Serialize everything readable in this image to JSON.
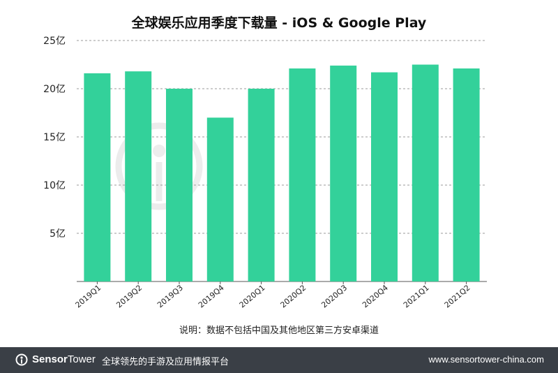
{
  "chart_data": {
    "type": "bar",
    "title": "全球娱乐应用季度下载量 - iOS & Google Play",
    "categories": [
      "2019Q1",
      "2019Q2",
      "2019Q3",
      "2019Q4",
      "2020Q1",
      "2020Q2",
      "2020Q3",
      "2020Q4",
      "2021Q1",
      "2021Q2"
    ],
    "values": [
      21.6,
      21.8,
      20.0,
      17.0,
      20.0,
      22.1,
      22.4,
      21.7,
      22.5,
      22.1
    ],
    "y_ticks": [
      "25亿",
      "20亿",
      "15亿",
      "10亿",
      "5亿"
    ],
    "y_tick_values": [
      25,
      20,
      15,
      10,
      5
    ],
    "ylim": [
      0,
      25
    ],
    "grid": true,
    "bar_color": "#33d19a",
    "grid_color": "#9a9a9a"
  },
  "footnote": "说明：数据不包括中国及其他地区第三方安卓渠道",
  "watermark": "SensorTower",
  "footer": {
    "brand_bold": "Sensor",
    "brand_regular": "Tower",
    "tagline": "全球领先的手游及应用情报平台",
    "url": "www.sensortower-china.com",
    "background": "#3a3f46"
  }
}
